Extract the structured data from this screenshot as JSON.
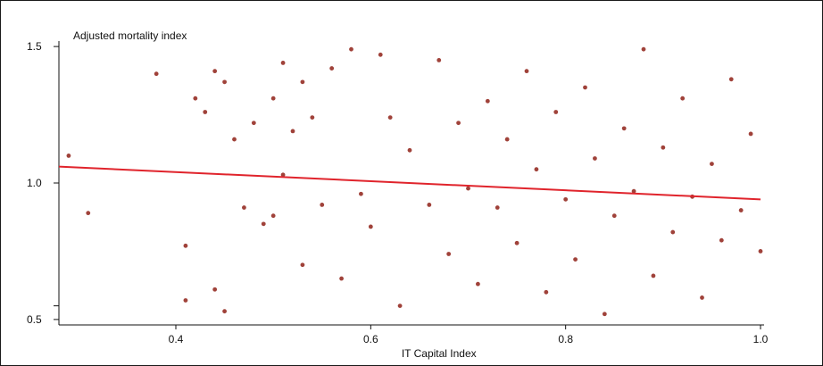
{
  "chart_data": {
    "type": "scatter",
    "title": "",
    "ylabel": "Adjusted mortality index",
    "xlabel": "IT Capital Index",
    "xlim": [
      0.28,
      1.0
    ],
    "ylim": [
      0.48,
      1.52
    ],
    "x_ticks": [
      {
        "value": 0.4,
        "label": "0.4"
      },
      {
        "value": 0.6,
        "label": "0.6"
      },
      {
        "value": 0.8,
        "label": "0.8"
      },
      {
        "value": 1.0,
        "label": "1.0"
      }
    ],
    "y_ticks": [
      {
        "value": 0.5,
        "label": "0.5"
      },
      {
        "value": 0.55,
        "label": ""
      },
      {
        "value": 1.0,
        "label": "1.0"
      },
      {
        "value": 1.5,
        "label": "1.5"
      }
    ],
    "grid": false,
    "legend": "none",
    "colors": {
      "points": "#a0423a",
      "trend": "#e0242c",
      "axis": "#111111"
    },
    "series": [
      {
        "points": [
          [
            0.29,
            1.1
          ],
          [
            0.31,
            0.89
          ],
          [
            0.38,
            1.4
          ],
          [
            0.41,
            0.77
          ],
          [
            0.41,
            0.57
          ],
          [
            0.42,
            1.31
          ],
          [
            0.43,
            1.26
          ],
          [
            0.44,
            1.41
          ],
          [
            0.44,
            0.61
          ],
          [
            0.45,
            1.37
          ],
          [
            0.45,
            0.53
          ],
          [
            0.46,
            1.16
          ],
          [
            0.47,
            0.91
          ],
          [
            0.48,
            1.22
          ],
          [
            0.49,
            0.85
          ],
          [
            0.5,
            1.31
          ],
          [
            0.5,
            0.88
          ],
          [
            0.51,
            1.44
          ],
          [
            0.51,
            1.03
          ],
          [
            0.52,
            1.19
          ],
          [
            0.53,
            1.37
          ],
          [
            0.53,
            0.7
          ],
          [
            0.54,
            1.24
          ],
          [
            0.55,
            0.92
          ],
          [
            0.56,
            1.42
          ],
          [
            0.57,
            0.65
          ],
          [
            0.58,
            1.49
          ],
          [
            0.59,
            0.96
          ],
          [
            0.6,
            0.84
          ],
          [
            0.61,
            1.47
          ],
          [
            0.62,
            1.24
          ],
          [
            0.63,
            0.55
          ],
          [
            0.64,
            1.12
          ],
          [
            0.66,
            0.92
          ],
          [
            0.67,
            1.45
          ],
          [
            0.68,
            0.74
          ],
          [
            0.69,
            1.22
          ],
          [
            0.7,
            0.98
          ],
          [
            0.71,
            0.63
          ],
          [
            0.72,
            1.3
          ],
          [
            0.73,
            0.91
          ],
          [
            0.74,
            1.16
          ],
          [
            0.75,
            0.78
          ],
          [
            0.76,
            1.41
          ],
          [
            0.77,
            1.05
          ],
          [
            0.78,
            0.6
          ],
          [
            0.79,
            1.26
          ],
          [
            0.8,
            0.94
          ],
          [
            0.81,
            0.72
          ],
          [
            0.82,
            1.35
          ],
          [
            0.83,
            1.09
          ],
          [
            0.84,
            0.52
          ],
          [
            0.85,
            0.88
          ],
          [
            0.86,
            1.2
          ],
          [
            0.87,
            0.97
          ],
          [
            0.88,
            1.49
          ],
          [
            0.89,
            0.66
          ],
          [
            0.9,
            1.13
          ],
          [
            0.91,
            0.82
          ],
          [
            0.92,
            1.31
          ],
          [
            0.93,
            0.95
          ],
          [
            0.94,
            0.58
          ],
          [
            0.95,
            1.07
          ],
          [
            0.96,
            0.79
          ],
          [
            0.97,
            1.38
          ],
          [
            0.98,
            0.9
          ],
          [
            0.99,
            1.18
          ],
          [
            1.0,
            0.75
          ]
        ]
      }
    ],
    "trend_line": {
      "x": [
        0.28,
        1.0
      ],
      "y": [
        1.06,
        0.94
      ]
    }
  }
}
